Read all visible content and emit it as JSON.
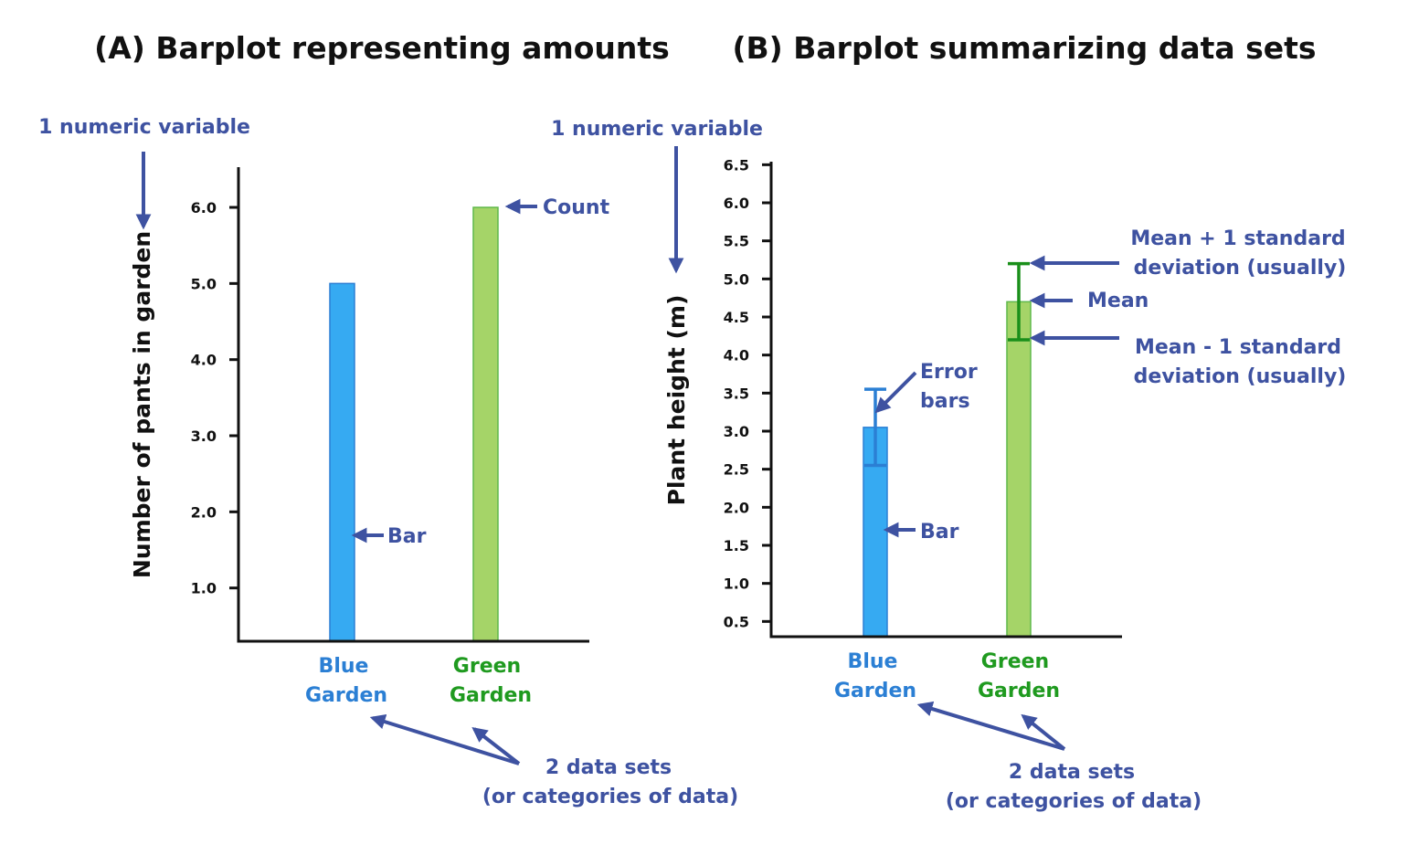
{
  "colors": {
    "annotation": "#3e52a1",
    "blue_bar": "#36aaf2",
    "blue_bar_edge": "#2b7fd4",
    "green_bar": "#a5d468",
    "green_bar_edge": "#5fb84a",
    "blue_text": "#2b7fd4",
    "green_text": "#1f9a1f",
    "error_bar_blue": "#2b7fd4",
    "error_bar_green": "#1a8f1a",
    "axis": "#111111"
  },
  "chart_data": [
    {
      "type": "bar",
      "title": "(A) Barplot representing amounts",
      "ylabel": "Number of pants in garden",
      "yticks": [
        "1.0",
        "2.0",
        "3.0",
        "4.0",
        "5.0",
        "6.0"
      ],
      "ylim": [
        0.3,
        6.3
      ],
      "categories": [
        {
          "line1": "Blue",
          "line2": "Garden",
          "color": "blue"
        },
        {
          "line1": "Green",
          "line2": "Garden",
          "color": "green"
        }
      ],
      "values": [
        5.0,
        6.0
      ],
      "grid": false,
      "annotations": {
        "variable": "1 numeric variable",
        "count": "Count",
        "bar": "Bar",
        "datasets_line1": "2 data sets",
        "datasets_line2": "(or categories of data)"
      }
    },
    {
      "type": "bar",
      "title": "(B) Barplot summarizing data sets",
      "ylabel": "Plant height (m)",
      "yticks": [
        "0.5",
        "1.0",
        "1.5",
        "2.0",
        "2.5",
        "3.0",
        "3.5",
        "4.0",
        "4.5",
        "5.0",
        "5.5",
        "6.0",
        "6.5"
      ],
      "ylim": [
        0.3,
        6.5
      ],
      "categories": [
        {
          "line1": "Blue",
          "line2": "Garden",
          "color": "blue"
        },
        {
          "line1": "Green",
          "line2": "Garden",
          "color": "green"
        }
      ],
      "values": [
        3.05,
        4.7
      ],
      "error_low": [
        2.55,
        4.2
      ],
      "error_high": [
        3.55,
        5.2
      ],
      "grid": false,
      "annotations": {
        "variable": "1 numeric variable",
        "error_line1": "Error",
        "error_line2": "bars",
        "bar": "Bar",
        "mean_plus_line1": "Mean + 1 standard",
        "mean_plus_line2": "deviation (usually)",
        "mean": "Mean",
        "mean_minus_line1": "Mean - 1 standard",
        "mean_minus_line2": "deviation (usually)",
        "datasets_line1": "2 data sets",
        "datasets_line2": "(or categories of data)"
      }
    }
  ]
}
